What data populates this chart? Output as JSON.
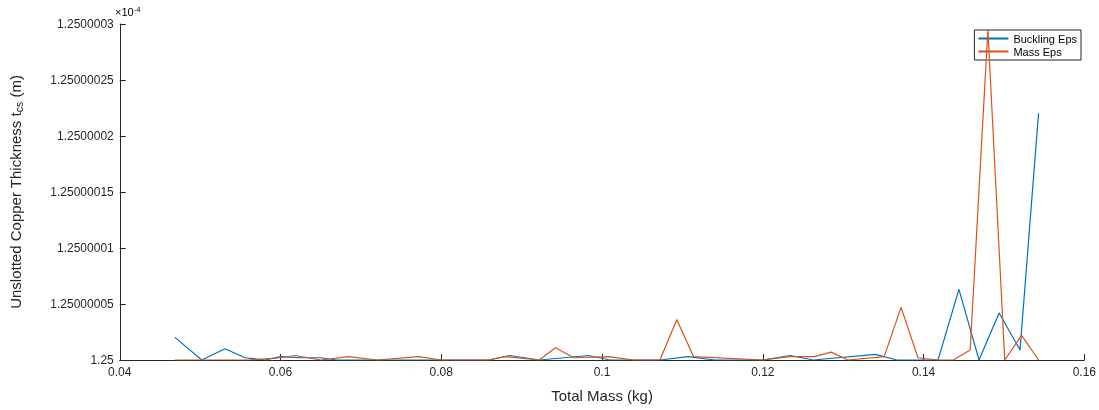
{
  "chart_data": {
    "type": "line",
    "xlabel": "Total Mass (kg)",
    "ylabel": "Unslotted Copper Thickness t$_{cs}$ (m)",
    "annotations": [
      "×10$^{-4}$"
    ],
    "xlim": [
      0.04,
      0.16
    ],
    "xticks": [
      0.04,
      0.06,
      0.08,
      0.1,
      0.12,
      0.14,
      0.16
    ],
    "ylim": [
      1.25,
      1.2500003
    ],
    "yticks": [
      1.25,
      1.25000005,
      1.2500001,
      1.25000015,
      1.2500002,
      1.25000025,
      1.2500003
    ],
    "grid": false,
    "legend": "top right",
    "marker": "none",
    "line_style": "solid",
    "series": [
      {
        "name": "Buckling Eps",
        "color": "#0072bd",
        "x": [
          0.0469,
          0.0502,
          0.0531,
          0.0556,
          0.0581,
          0.06,
          0.0625,
          0.065,
          0.067,
          0.072,
          0.079,
          0.0859,
          0.0885,
          0.0922,
          0.0983,
          0.101,
          0.1072,
          0.1107,
          0.114,
          0.12,
          0.1234,
          0.1263,
          0.134,
          0.1367,
          0.1398,
          0.1418,
          0.1444,
          0.1469,
          0.1494,
          0.152,
          0.1543
        ],
        "values": [
          1.25000002,
          1.25,
          1.25000001,
          1.250000002,
          1.25,
          1.250000003,
          1.250000002,
          1.250000002,
          1.25,
          1.25,
          1.25,
          1.25,
          1.250000004,
          1.25,
          1.250000004,
          1.25,
          1.25,
          1.250000003,
          1.25,
          1.25,
          1.250000004,
          1.25,
          1.250000005,
          1.25,
          1.25,
          1.25,
          1.250000063,
          1.25,
          1.250000042,
          1.250000009,
          1.25000022
        ]
      },
      {
        "name": "Mass Eps",
        "color": "#d95319",
        "x": [
          0.0469,
          0.056,
          0.06,
          0.0618,
          0.065,
          0.0685,
          0.072,
          0.0772,
          0.08,
          0.0859,
          0.0879,
          0.0922,
          0.0942,
          0.0965,
          0.1008,
          0.104,
          0.1072,
          0.1093,
          0.1114,
          0.12,
          0.1234,
          0.1264,
          0.1285,
          0.1306,
          0.1351,
          0.1372,
          0.1393,
          0.1417,
          0.1437,
          0.1458,
          0.148,
          0.1501,
          0.1522,
          0.1543
        ],
        "values": [
          1.25,
          1.25,
          1.250000002,
          1.250000004,
          1.25,
          1.250000003,
          1.25,
          1.250000003,
          1.25,
          1.25,
          1.250000003,
          1.25,
          1.250000011,
          1.250000002,
          1.250000003,
          1.25,
          1.25,
          1.250000036,
          1.250000003,
          1.25,
          1.250000003,
          1.250000003,
          1.250000007,
          1.25,
          1.250000003,
          1.250000047,
          1.250000002,
          1.25,
          1.25,
          1.250000009,
          1.250000295,
          1.25,
          1.250000022,
          1.25
        ]
      }
    ]
  }
}
